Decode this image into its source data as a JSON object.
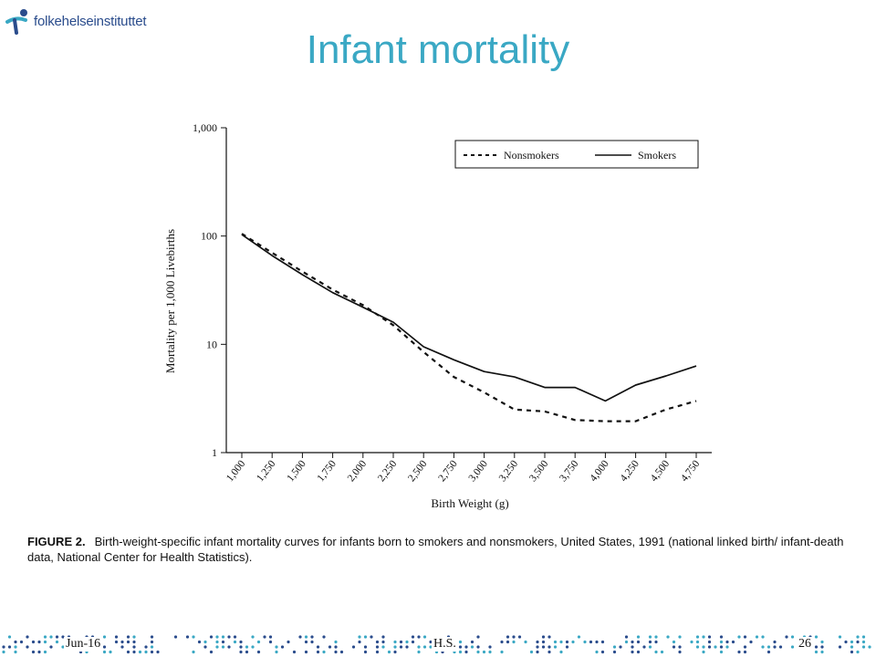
{
  "header": {
    "logo_text": "folkehelseinstituttet",
    "title": "Infant mortality"
  },
  "chart_data": {
    "type": "line",
    "title": "",
    "xlabel": "Birth Weight (g)",
    "ylabel": "Mortality per 1,000 Livebirths",
    "yscale": "log",
    "ylim": [
      1,
      1000
    ],
    "y_ticks": [
      1,
      10,
      100,
      1000
    ],
    "y_tick_labels": [
      "1",
      "10",
      "100",
      "1,000"
    ],
    "x_tick_labels": [
      "1,000",
      "1,250",
      "1,500",
      "1,750",
      "2,000",
      "2,250",
      "2,500",
      "2,750",
      "3,000",
      "3,250",
      "3,500",
      "3,750",
      "4,000",
      "4,250",
      "4,500",
      "4,750"
    ],
    "legend_position": "top-right",
    "series": [
      {
        "name": "Nonsmokers",
        "style": "dashed",
        "x": [
          1000,
          1250,
          1500,
          1750,
          2000,
          2250,
          2500,
          2750,
          3000,
          3250,
          3500,
          3750,
          4000,
          4250,
          4500,
          4750
        ],
        "values": [
          105,
          70,
          47,
          32,
          23,
          15,
          8.5,
          5,
          3.6,
          2.5,
          2.4,
          2.0,
          1.95,
          1.95,
          2.5,
          3.0
        ]
      },
      {
        "name": "Smokers",
        "style": "solid",
        "x": [
          1000,
          1250,
          1500,
          1750,
          2000,
          2250,
          2500,
          2750,
          3000,
          3250,
          3500,
          3750,
          4000,
          4250,
          4500,
          4750
        ],
        "values": [
          103,
          66,
          44,
          30,
          22,
          16,
          9.5,
          7.2,
          5.6,
          5.0,
          4.0,
          4.0,
          3.0,
          4.2,
          5.1,
          6.3
        ]
      }
    ]
  },
  "caption": {
    "label": "FIGURE 2.",
    "text": "Birth-weight-specific infant mortality curves for infants born to smokers and nonsmokers, United States, 1991 (national linked birth/ infant-death data, National Center for Health Statistics)."
  },
  "footer": {
    "date": "Jun-16",
    "author": "H.S.",
    "page": "26"
  },
  "colors": {
    "title": "#3aa8c4",
    "logo": "#2a4c8c",
    "dots_blue": "#2a4c8c",
    "dots_teal": "#3aa8c4"
  }
}
